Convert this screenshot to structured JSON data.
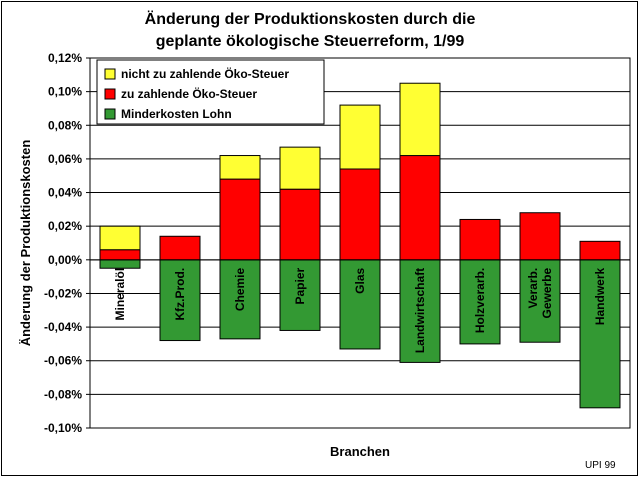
{
  "chart_data": {
    "type": "bar",
    "stacked": true,
    "title": "Änderung der Produktionskosten durch die geplante ökologische Steuerreform, 1/99",
    "title_lines": [
      "Änderung der Produktionskosten durch die",
      "geplante ökologische Steuerreform, 1/99"
    ],
    "xlabel": "Branchen",
    "ylabel": "Änderung der Produktionskosten",
    "ylim": [
      -0.1,
      0.12
    ],
    "yticks": [
      "0,12%",
      "0,10%",
      "0,08%",
      "0,06%",
      "0,04%",
      "0,02%",
      "0,00%",
      "-0,02%",
      "-0,04%",
      "-0,06%",
      "-0,08%",
      "-0,10%"
    ],
    "ytick_values": [
      0.12,
      0.1,
      0.08,
      0.06,
      0.04,
      0.02,
      0.0,
      -0.02,
      -0.04,
      -0.06,
      -0.08,
      -0.1
    ],
    "categories": [
      "Mineralöl",
      "Kfz.Prod.",
      "Chemie",
      "Papier",
      "Glas",
      "Landwirtschaft",
      "Holzverarb.",
      "Verarb. Gewerbe",
      "Handwerk"
    ],
    "series": [
      {
        "name": "nicht zu zahlende Öko-Steuer",
        "color": "#FFFF33",
        "values": [
          0.014,
          0.0,
          0.014,
          0.025,
          0.038,
          0.043,
          0.0,
          0.0,
          0.0
        ]
      },
      {
        "name": "zu zahlende Öko-Steuer",
        "color": "#FF0000",
        "values": [
          0.006,
          0.014,
          0.048,
          0.042,
          0.054,
          0.062,
          0.024,
          0.028,
          0.011
        ]
      },
      {
        "name": "Minderkosten Lohn",
        "color": "#339933",
        "values": [
          -0.005,
          -0.048,
          -0.047,
          -0.042,
          -0.053,
          -0.061,
          -0.05,
          -0.049,
          -0.088
        ]
      }
    ],
    "legend_placement": "top-left",
    "grid": false,
    "gridlines": "horizontal",
    "credit": "UPI 99"
  }
}
